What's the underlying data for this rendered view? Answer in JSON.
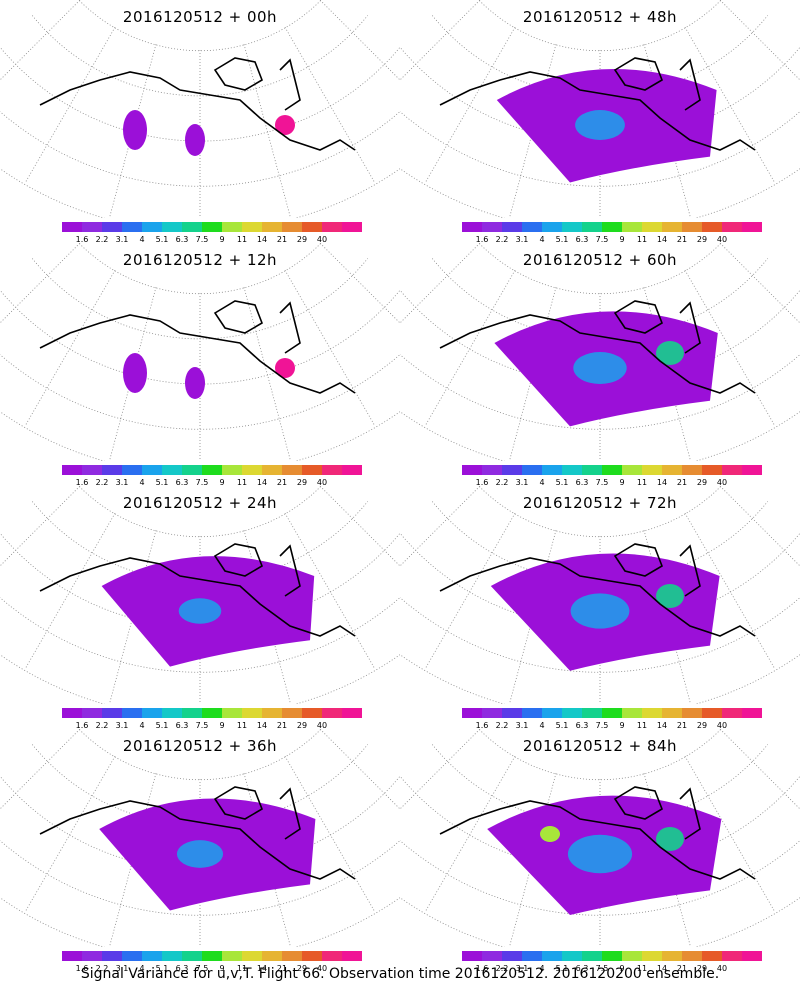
{
  "panels": [
    {
      "title": "2016120512 + 00h",
      "level": 0.1
    },
    {
      "title": "2016120512 + 48h",
      "level": 0.55
    },
    {
      "title": "2016120512 + 12h",
      "level": 0.2
    },
    {
      "title": "2016120512 + 60h",
      "level": 0.65
    },
    {
      "title": "2016120512 + 24h",
      "level": 0.35
    },
    {
      "title": "2016120512 + 72h",
      "level": 0.8
    },
    {
      "title": "2016120512 + 36h",
      "level": 0.45
    },
    {
      "title": "2016120512 + 84h",
      "level": 0.95
    }
  ],
  "colorbar": {
    "colors": [
      "#9b10d8",
      "#8f2ae0",
      "#5a3be8",
      "#2a6ff0",
      "#1aa3ec",
      "#14c8c8",
      "#14d28c",
      "#1edc1e",
      "#a8e63a",
      "#dcd832",
      "#e6b432",
      "#e68c32",
      "#e65a28",
      "#f02878",
      "#f01496"
    ],
    "ticks": [
      "1.6",
      "2.2",
      "3.1",
      "4",
      "5.1",
      "6.3",
      "7.5",
      "9",
      "11",
      "14",
      "21",
      "29",
      "40"
    ]
  },
  "footer": "Signal Variance for u,v,T. Flight 66. Observation time 2016120512. 2016120200 ensemble."
}
